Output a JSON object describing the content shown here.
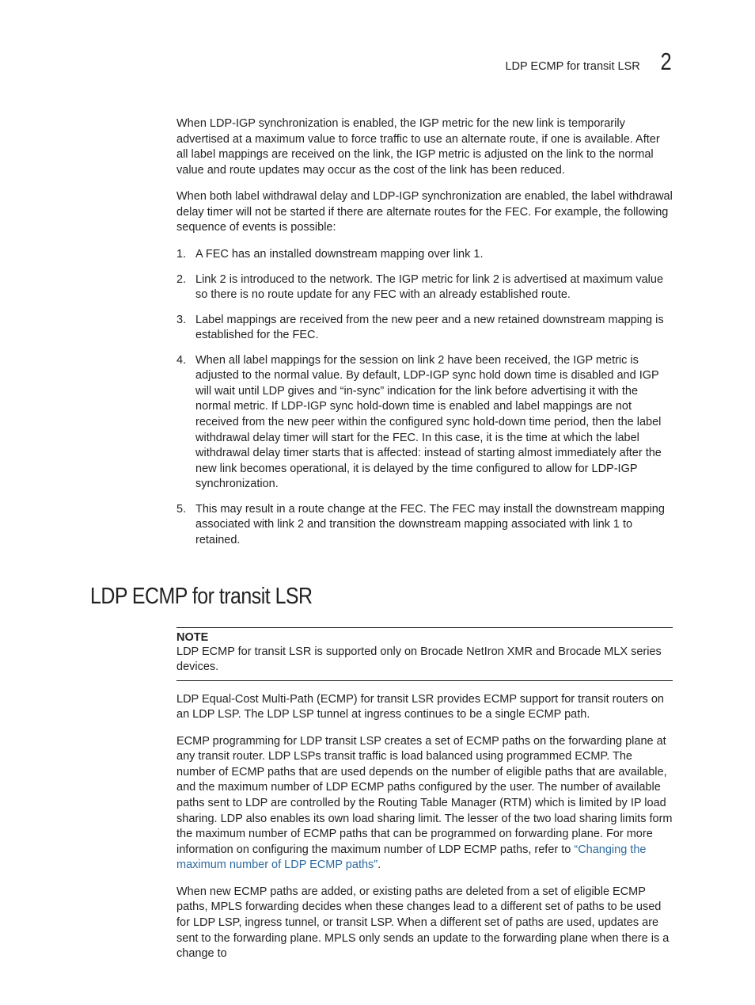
{
  "colors": {
    "text": "#222222",
    "background": "#ffffff",
    "link": "#2c6aa0",
    "rule": "#222222"
  },
  "typography": {
    "body_fontsize_pt": 11,
    "heading_fontsize_pt": 22,
    "header_num_fontsize_pt": 23
  },
  "header": {
    "text": "LDP ECMP for transit LSR",
    "chapter_number": "2"
  },
  "intro_paragraphs": [
    "When LDP-IGP synchronization is enabled, the IGP metric for the new link is temporarily advertised at a maximum value to force traffic to use an alternate route, if one is available. After all label mappings are received on the link, the IGP metric is adjusted on the link to the normal value and route updates may occur as the cost of the link has been reduced.",
    "When both label withdrawal delay and LDP-IGP synchronization are enabled, the label withdrawal delay timer will not be started if there are alternate routes for the FEC. For example, the following sequence of events is possible:"
  ],
  "sequence": [
    "A FEC has an installed downstream mapping over link 1.",
    "Link 2 is introduced to the network. The IGP metric for link 2 is advertised at maximum value so there is no route update for any FEC with an already established route.",
    "Label mappings are received from the new peer and a new retained downstream mapping is established for the FEC.",
    "When all label mappings for the session on link 2 have been received, the IGP metric is adjusted to the normal value. By default, LDP-IGP sync hold down time is disabled and IGP will wait until LDP gives and “in-sync” indication for the link before advertising it with the normal metric. If LDP-IGP sync hold-down time is enabled and label mappings are not received from the new peer within the configured sync hold-down time period, then the label withdrawal delay timer will start for the FEC. In this case, it is the time at which the label withdrawal delay timer starts that is affected: instead of starting almost immediately after the new link becomes operational, it is delayed by the time configured to allow for LDP-IGP synchronization.",
    "This may result in a route change at the FEC. The FEC may install the downstream mapping associated with link 2 and transition the downstream mapping associated with link 1 to retained."
  ],
  "section_heading": "LDP ECMP for transit LSR",
  "note": {
    "label": "NOTE",
    "text": "LDP ECMP for transit LSR is supported only on Brocade NetIron XMR and Brocade MLX series devices."
  },
  "section_paragraphs": {
    "p1": "LDP Equal-Cost Multi-Path (ECMP) for transit LSR provides ECMP support for transit routers on an LDP LSP. The LDP LSP tunnel at ingress continues to be a single ECMP path.",
    "p2_pre": "ECMP programming for LDP transit LSP creates a set of ECMP paths on the forwarding plane at any transit router. LDP LSPs transit traffic is load balanced using programmed ECMP. The number of ECMP paths that are used depends on the number of eligible paths that are available, and the maximum number of LDP ECMP paths configured by the user. The number of available paths sent to LDP are controlled by the Routing Table Manager (RTM) which is limited by IP load sharing. LDP also enables its own load sharing limit. The lesser of the two load sharing limits form the maximum number of ECMP paths that can be programmed on forwarding plane. For more information on configuring the maximum number of LDP ECMP paths, refer to ",
    "p2_link": "“Changing the maximum number of LDP ECMP paths”",
    "p2_post": ".",
    "p3": "When new ECMP paths are added, or existing paths are deleted from a set of eligible ECMP paths, MPLS forwarding decides when these changes lead to a different set of paths to be used for LDP LSP, ingress tunnel, or transit LSP. When a different set of paths are used, updates are sent to the forwarding plane. MPLS only sends an update to the forwarding plane when there is a change to"
  }
}
